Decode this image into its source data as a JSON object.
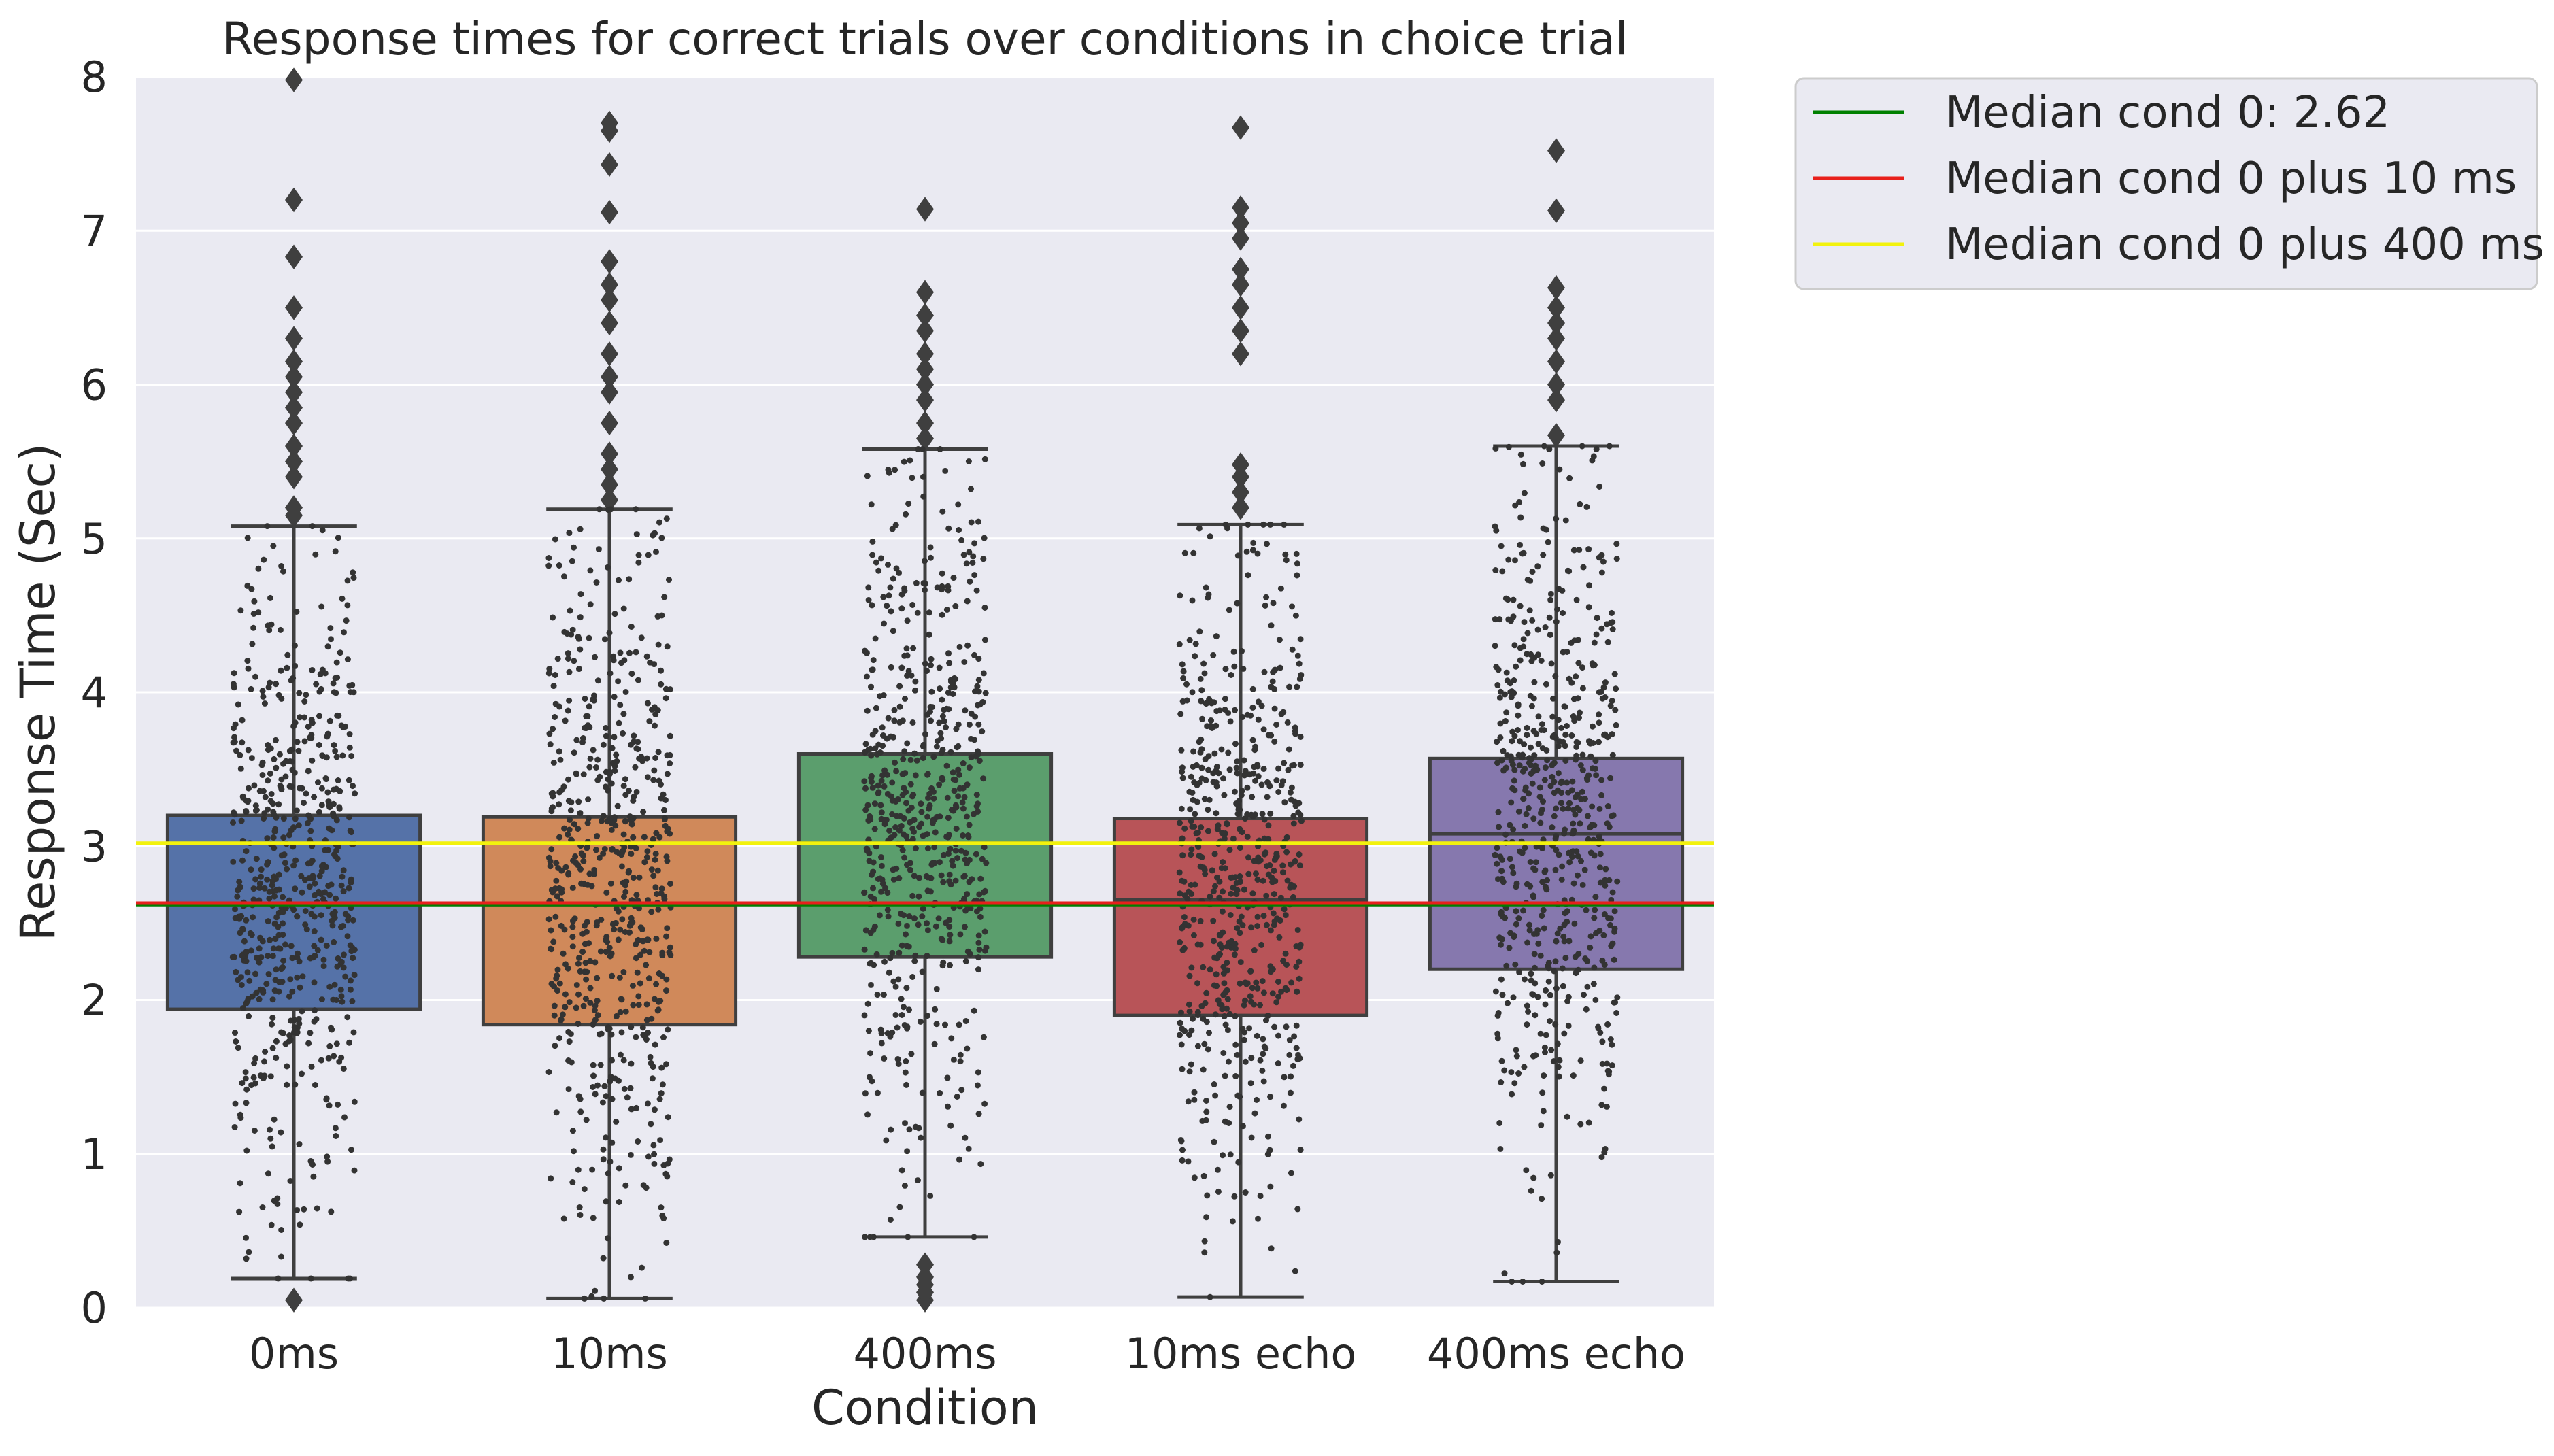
{
  "chart_data": {
    "type": "box",
    "title": "Response times for correct trials over conditions in choice trial",
    "xlabel": "Condition",
    "ylabel": "Response Time (Sec)",
    "ylim": [
      0,
      8
    ],
    "yticks": [
      "0",
      "1",
      "2",
      "3",
      "4",
      "5",
      "6",
      "7",
      "8"
    ],
    "grid": true,
    "legend_position": "outside-top-right",
    "categories": [
      "0ms",
      "10ms",
      "400ms",
      "10ms echo",
      "400ms echo"
    ],
    "colors": [
      "#5572a8",
      "#d0895a",
      "#5b9e6d",
      "#b85458",
      "#8678ae"
    ],
    "boxes": [
      {
        "q1": 1.94,
        "median": 2.62,
        "q3": 3.2,
        "whisker_low": 0.19,
        "whisker_high": 5.08,
        "outliers": [
          0.05,
          5.15,
          5.2,
          5.4,
          5.5,
          5.6,
          5.75,
          5.85,
          5.95,
          6.05,
          6.15,
          6.3,
          6.5,
          6.83,
          7.2,
          7.98
        ]
      },
      {
        "q1": 1.84,
        "median": 2.62,
        "q3": 3.19,
        "whisker_low": 0.06,
        "whisker_high": 5.19,
        "outliers": [
          5.25,
          5.35,
          5.45,
          5.55,
          5.75,
          5.95,
          6.05,
          6.2,
          6.4,
          6.55,
          6.65,
          6.8,
          7.12,
          7.43,
          7.65,
          7.7
        ]
      },
      {
        "q1": 2.28,
        "median": 3.02,
        "q3": 3.6,
        "whisker_low": 0.46,
        "whisker_high": 5.58,
        "outliers": [
          0.05,
          0.1,
          0.15,
          0.2,
          0.28,
          5.65,
          5.75,
          5.9,
          6.0,
          6.1,
          6.2,
          6.35,
          6.45,
          6.6,
          7.14
        ]
      },
      {
        "q1": 1.9,
        "median": 2.65,
        "q3": 3.18,
        "whisker_low": 0.07,
        "whisker_high": 5.09,
        "outliers": [
          5.2,
          5.3,
          5.4,
          5.48,
          6.2,
          6.35,
          6.5,
          6.65,
          6.75,
          6.95,
          7.05,
          7.15,
          7.67
        ]
      },
      {
        "q1": 2.2,
        "median": 3.08,
        "q3": 3.57,
        "whisker_low": 0.17,
        "whisker_high": 5.6,
        "outliers": [
          5.67,
          5.9,
          6.0,
          6.15,
          6.3,
          6.4,
          6.5,
          6.63,
          7.13,
          7.52
        ]
      }
    ],
    "reference_lines": [
      {
        "name": "Median cond 0: 2.62",
        "value": 2.62,
        "color": "#008000"
      },
      {
        "name": "Median cond 0 plus 10 ms",
        "value": 2.63,
        "color": "#e8201c"
      },
      {
        "name": "Median cond 0 plus 400 ms",
        "value": 3.02,
        "color": "#f2f20d"
      }
    ],
    "strip_points_per_category": 600
  }
}
